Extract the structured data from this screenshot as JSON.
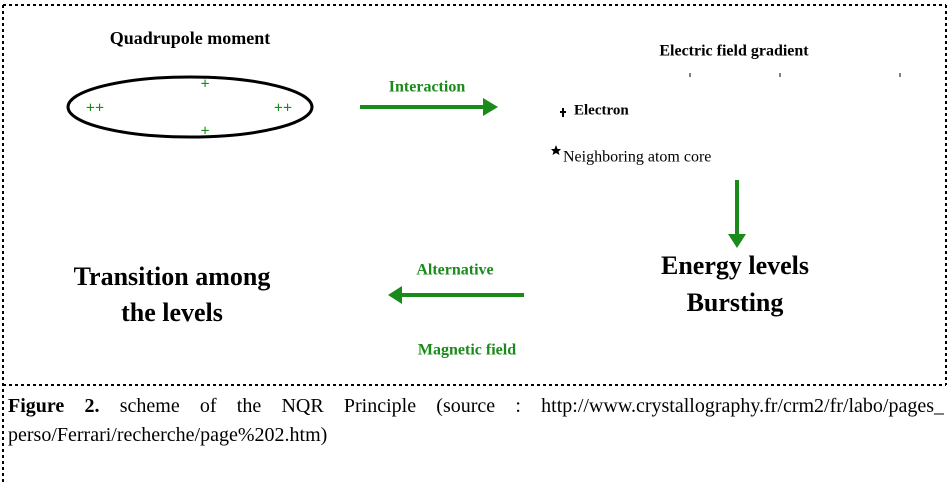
{
  "quadrupole": {
    "title": "Quadrupole moment",
    "charges": [
      "+",
      "++",
      "++",
      "+"
    ]
  },
  "interaction": "Interaction",
  "gradient": {
    "title": "Electric field gradient",
    "electron": "Electron",
    "core": "Neighboring atom core"
  },
  "energy": [
    "Energy levels",
    "Bursting"
  ],
  "alternative": "Alternative",
  "magnetic": "Magnetic field",
  "transition": [
    "Transition among",
    "the levels"
  ],
  "caption": {
    "label": "Figure 2.",
    "text": "scheme of the NQR Principle (source : http://www.crystallography.fr/crm2/fr/labo/pages_ perso/Ferrari/recherche/page%202.htm)"
  }
}
